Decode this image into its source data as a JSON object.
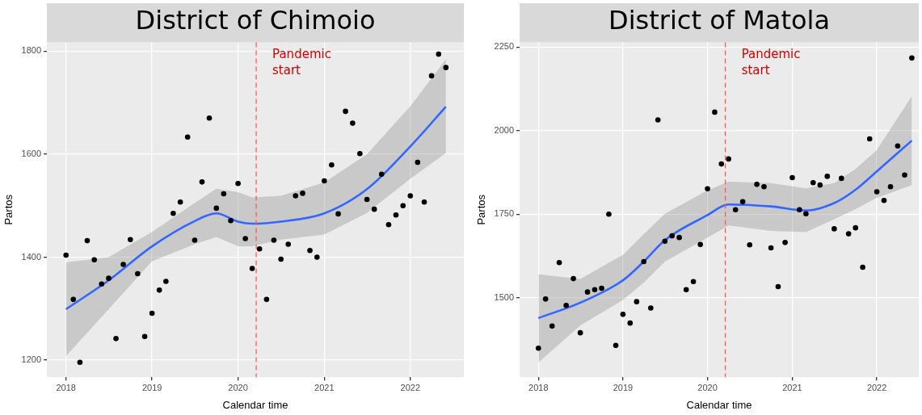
{
  "chart_data": [
    {
      "type": "scatter",
      "title": "District of Chimoio",
      "xlabel": "Calendar time",
      "ylabel": "Partos",
      "grid": true,
      "xlim": [
        "2017-10-12",
        "2022-08-16"
      ],
      "xticks": [
        "2018",
        "2019",
        "2020",
        "2021",
        "2022"
      ],
      "ylim": [
        1167,
        1817
      ],
      "yticks": [
        1200,
        1400,
        1600,
        1800
      ],
      "series": [
        {
          "type": "scatter",
          "marker": "circle",
          "color": "#000000",
          "x": [
            "2018-01",
            "2018-02",
            "2018-03",
            "2018-04",
            "2018-05",
            "2018-06",
            "2018-07",
            "2018-08",
            "2018-09",
            "2018-10",
            "2018-11",
            "2018-12",
            "2019-01",
            "2019-02",
            "2019-03",
            "2019-04",
            "2019-05",
            "2019-06",
            "2019-07",
            "2019-08",
            "2019-09",
            "2019-10",
            "2019-11",
            "2019-12",
            "2020-01",
            "2020-02",
            "2020-03",
            "2020-04",
            "2020-05",
            "2020-06",
            "2020-07",
            "2020-08",
            "2020-09",
            "2020-10",
            "2020-11",
            "2020-12",
            "2021-01",
            "2021-02",
            "2021-03",
            "2021-04",
            "2021-05",
            "2021-06",
            "2021-07",
            "2021-08",
            "2021-09",
            "2021-10",
            "2021-11",
            "2021-12",
            "2022-01",
            "2022-02",
            "2022-03",
            "2022-04",
            "2022-05",
            "2022-06"
          ],
          "values": [
            1404,
            1318,
            1196,
            1432,
            1395,
            1348,
            1359,
            1242,
            1386,
            1434,
            1368,
            1246,
            1291,
            1336,
            1353,
            1485,
            1507,
            1633,
            1433,
            1546,
            1670,
            1495,
            1523,
            1471,
            1543,
            1436,
            1378,
            1416,
            1318,
            1433,
            1396,
            1425,
            1519,
            1524,
            1413,
            1400,
            1548,
            1579,
            1484,
            1683,
            1660,
            1601,
            1512,
            1493,
            1561,
            1463,
            1482,
            1500,
            1519,
            1584,
            1507,
            1752,
            1794,
            1768
          ]
        },
        {
          "type": "line",
          "marker": "none",
          "color": "#3366ff",
          "x": [
            "2018-01",
            "2018-07",
            "2019-01",
            "2019-07",
            "2019-10",
            "2020-01",
            "2020-03",
            "2020-07",
            "2021-01",
            "2021-07",
            "2022-01",
            "2022-06"
          ],
          "values": [
            1299,
            1355,
            1421,
            1470,
            1485,
            1469,
            1465,
            1469,
            1485,
            1532,
            1615,
            1692
          ],
          "lower": [
            1208,
            1299,
            1392,
            1425,
            1439,
            1421,
            1421,
            1434,
            1444,
            1486,
            1552,
            1602
          ],
          "upper": [
            1390,
            1400,
            1449,
            1505,
            1533,
            1526,
            1516,
            1519,
            1545,
            1600,
            1693,
            1784
          ]
        }
      ],
      "ref_lines": [
        {
          "axis": "x",
          "value": "2020-03-18",
          "label": "Pandemic start",
          "color": "#ff5050",
          "line_style": "dashed"
        }
      ]
    },
    {
      "type": "scatter",
      "title": "District of Matola",
      "xlabel": "Calendar time",
      "ylabel": "Partos",
      "grid": true,
      "xlim": [
        "2017-10-12",
        "2022-07-01"
      ],
      "xticks": [
        "2018",
        "2019",
        "2020",
        "2021",
        "2022"
      ],
      "ylim": [
        1262,
        2264
      ],
      "yticks": [
        1500,
        1750,
        2000,
        2250
      ],
      "series": [
        {
          "type": "scatter",
          "marker": "circle",
          "color": "#000000",
          "x": [
            "2018-01",
            "2018-02",
            "2018-03",
            "2018-04",
            "2018-05",
            "2018-06",
            "2018-07",
            "2018-08",
            "2018-09",
            "2018-10",
            "2018-11",
            "2018-12",
            "2019-01",
            "2019-02",
            "2019-03",
            "2019-04",
            "2019-05",
            "2019-06",
            "2019-07",
            "2019-08",
            "2019-09",
            "2019-10",
            "2019-11",
            "2019-12",
            "2020-01",
            "2020-02",
            "2020-03",
            "2020-04",
            "2020-05",
            "2020-06",
            "2020-07",
            "2020-08",
            "2020-09",
            "2020-10",
            "2020-11",
            "2020-12",
            "2021-01",
            "2021-02",
            "2021-03",
            "2021-04",
            "2021-05",
            "2021-06",
            "2021-07",
            "2021-08",
            "2021-09",
            "2021-10",
            "2021-11",
            "2021-12",
            "2022-01",
            "2022-02",
            "2022-03",
            "2022-04",
            "2022-05",
            "2022-06"
          ],
          "values": [
            1349,
            1496,
            1415,
            1605,
            1477,
            1557,
            1395,
            1517,
            1524,
            1528,
            1750,
            1357,
            1450,
            1424,
            1488,
            1608,
            1469,
            2032,
            1669,
            1685,
            1680,
            1524,
            1548,
            1659,
            1826,
            2055,
            1900,
            1915,
            1763,
            1787,
            1658,
            1839,
            1832,
            1649,
            1533,
            1665,
            1859,
            1763,
            1751,
            1844,
            1837,
            1863,
            1706,
            1857,
            1691,
            1709,
            1591,
            1975,
            1817,
            1791,
            1832,
            1954,
            1867,
            2217
          ]
        },
        {
          "type": "line",
          "marker": "none",
          "color": "#3366ff",
          "x": [
            "2018-01",
            "2018-07",
            "2019-01",
            "2019-04",
            "2019-07",
            "2020-01",
            "2020-04",
            "2020-10",
            "2021-03",
            "2021-07",
            "2021-10",
            "2022-01",
            "2022-06"
          ],
          "values": [
            1439,
            1485,
            1552,
            1608,
            1672,
            1747,
            1779,
            1773,
            1761,
            1783,
            1823,
            1878,
            1970
          ],
          "lower": [
            1306,
            1417,
            1493,
            1545,
            1608,
            1680,
            1716,
            1700,
            1696,
            1735,
            1765,
            1799,
            1837
          ],
          "upper": [
            1570,
            1556,
            1628,
            1690,
            1751,
            1821,
            1847,
            1843,
            1827,
            1843,
            1885,
            1942,
            2103
          ]
        }
      ],
      "ref_lines": [
        {
          "axis": "x",
          "value": "2020-03-18",
          "label": "Pandemic start",
          "color": "#ff5050",
          "line_style": "dashed"
        }
      ]
    }
  ]
}
